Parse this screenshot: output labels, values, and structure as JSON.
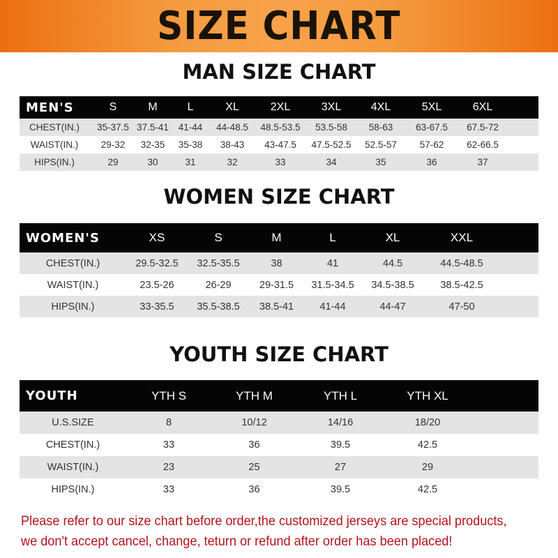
{
  "banner": "SIZE CHART",
  "men": {
    "title": "MAN SIZE CHART",
    "header": [
      "MEN'S",
      "S",
      "M",
      "L",
      "XL",
      "2XL",
      "3XL",
      "4XL",
      "5XL",
      "6XL"
    ],
    "rows": [
      [
        "CHEST(IN.)",
        "35-37.5",
        "37.5-41",
        "41-44",
        "44-48.5",
        "48.5-53.5",
        "53.5-58",
        "58-63",
        "63-67.5",
        "67.5-72"
      ],
      [
        "WAIST(IN.)",
        "29-32",
        "32-35",
        "35-38",
        "38-43",
        "43-47.5",
        "47.5-52.5",
        "52.5-57",
        "57-62",
        "62-66.5"
      ],
      [
        "HIPS(IN.)",
        "29",
        "30",
        "31",
        "32",
        "33",
        "34",
        "35",
        "36",
        "37"
      ]
    ]
  },
  "women": {
    "title": "WOMEN SIZE CHART",
    "header": [
      "WOMEN'S",
      "XS",
      "S",
      "M",
      "L",
      "XL",
      "XXL"
    ],
    "rows": [
      [
        "CHEST(IN.)",
        "29.5-32.5",
        "32.5-35.5",
        "38",
        "41",
        "44.5",
        "44.5-48.5"
      ],
      [
        "WAIST(IN.)",
        "23.5-26",
        "26-29",
        "29-31.5",
        "31.5-34.5",
        "34.5-38.5",
        "38.5-42.5"
      ],
      [
        "HIPS(IN.)",
        "33-35.5",
        "35.5-38.5",
        "38.5-41",
        "41-44",
        "44-47",
        "47-50"
      ]
    ]
  },
  "youth": {
    "title": "YOUTH SIZE CHART",
    "header": [
      "YOUTH",
      "YTH S",
      "YTH M",
      "YTH L",
      "YTH XL"
    ],
    "rows": [
      [
        "U.S.SIZE",
        "8",
        "10/12",
        "14/16",
        "18/20"
      ],
      [
        "CHEST(IN.)",
        "33",
        "36",
        "39.5",
        "42.5"
      ],
      [
        "WAIST(IN.)",
        "23",
        "25",
        "27",
        "29"
      ],
      [
        "HIPS(IN.)",
        "33",
        "36",
        "39.5",
        "42.5"
      ]
    ]
  },
  "note": {
    "line1": "Please refer to our size chart before order,the customized jerseys are special products,",
    "line2": "we don't accept cancel, change, teturn or refund after order has been placed!"
  },
  "colors": {
    "banner": "#ef7f22",
    "header_row": "#050505",
    "note_text": "#b3141b",
    "stripe": "#e4e4e4"
  }
}
